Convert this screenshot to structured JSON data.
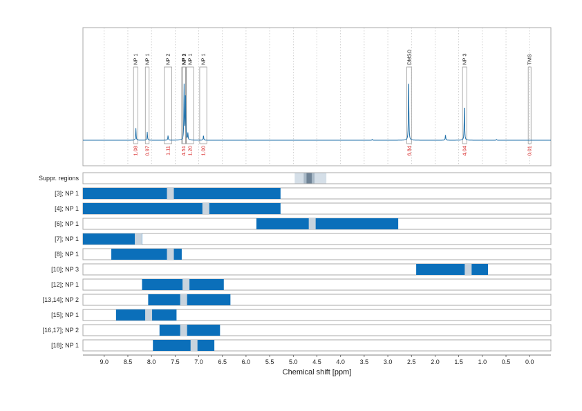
{
  "chart_data": {
    "type": "line",
    "xlabel": "Chemical shift [ppm]",
    "xlim": [
      9.45,
      -0.45
    ],
    "x_ticks": [
      "9.0",
      "8.5",
      "8.0",
      "7.5",
      "7.0",
      "6.5",
      "6.0",
      "5.5",
      "5.0",
      "4.5",
      "4.0",
      "3.5",
      "3.0",
      "2.5",
      "2.0",
      "1.5",
      "1.0",
      "0.5",
      "0.0"
    ],
    "grid": "vertical dotted",
    "spectrum": {
      "baseline": 0.0,
      "peaks": [
        {
          "x": 8.33,
          "h": 0.16
        },
        {
          "x": 8.09,
          "h": 0.11
        },
        {
          "x": 7.65,
          "h": 0.06
        },
        {
          "x": 7.31,
          "h": 0.72
        },
        {
          "x": 7.28,
          "h": 0.62
        },
        {
          "x": 7.23,
          "h": 0.09
        },
        {
          "x": 6.9,
          "h": 0.06
        },
        {
          "x": 2.56,
          "h": 0.82
        },
        {
          "x": 1.78,
          "h": 0.07
        },
        {
          "x": 1.38,
          "h": 0.47
        },
        {
          "x": 3.33,
          "h": 0.01
        },
        {
          "x": 0.7,
          "h": 0.01
        }
      ]
    },
    "peak_annotations": [
      {
        "label": "NP 1",
        "from": 8.38,
        "to": 8.29,
        "integral": "1.08"
      },
      {
        "label": "NP 1",
        "from": 8.13,
        "to": 8.05,
        "integral": "0.97"
      },
      {
        "label": "NP 2",
        "from": 7.73,
        "to": 7.57,
        "integral": "1.11"
      },
      {
        "label": "NP 1",
        "from": 7.36,
        "to": 7.28,
        "integral": "4.51"
      },
      {
        "label": "NP 2",
        "from": 7.34,
        "to": 7.27,
        "integral": ""
      },
      {
        "label": "NP 1",
        "from": 7.26,
        "to": 7.11,
        "integral": "1.20"
      },
      {
        "label": "NP 1",
        "from": 6.98,
        "to": 6.83,
        "integral": "1.00"
      },
      {
        "label": "DMSO",
        "from": 2.6,
        "to": 2.5,
        "integral": "6.84"
      },
      {
        "label": "NP 3",
        "from": 1.42,
        "to": 1.33,
        "integral": "4.04"
      },
      {
        "label": "TMS",
        "from": 0.03,
        "to": -0.03,
        "integral": "0.01"
      }
    ],
    "suppressed_regions": {
      "label": "Suppr. regions",
      "light": [
        4.97,
        4.3
      ],
      "mid": [
        4.78,
        4.55
      ],
      "dark": [
        4.72,
        4.61
      ]
    },
    "range_rows": [
      {
        "label": "[3]; NP 1",
        "from": 9.45,
        "to": 5.27,
        "marker": 7.6
      },
      {
        "label": "[4]; NP 1",
        "from": 9.45,
        "to": 5.27,
        "marker": 6.85
      },
      {
        "label": "[6]; NP 1",
        "from": 5.78,
        "to": 2.78,
        "marker": 4.6
      },
      {
        "label": "[7]; NP 1",
        "from": 9.45,
        "to": 8.2,
        "marker": 8.28
      },
      {
        "label": "[8]; NP 1",
        "from": 8.85,
        "to": 7.36,
        "marker": 7.6
      },
      {
        "label": "[10]; NP 3",
        "from": 2.4,
        "to": 0.88,
        "marker": 1.3
      },
      {
        "label": "[12]; NP 1",
        "from": 8.2,
        "to": 6.47,
        "marker": 7.27
      },
      {
        "label": "[13,14]; NP 2",
        "from": 8.07,
        "to": 6.33,
        "marker": 7.32
      },
      {
        "label": "[15]; NP 1",
        "from": 8.75,
        "to": 7.47,
        "marker": 8.06
      },
      {
        "label": "[16,17]; NP 2",
        "from": 7.83,
        "to": 6.55,
        "marker": 7.32
      },
      {
        "label": "[18]; NP 1",
        "from": 7.97,
        "to": 6.67,
        "marker": 7.1
      }
    ],
    "colors": {
      "spectrum": "#1f6fa8",
      "bar": "#0b6fba",
      "marker": "#c8d3dd",
      "integral": "#d62020",
      "suppr_light": "#d5dfe8",
      "suppr_mid": "#a9b9c7",
      "suppr_dark": "#6f8396",
      "panel_border": "#aaaaaa",
      "grid": "#bbbbbb"
    }
  }
}
